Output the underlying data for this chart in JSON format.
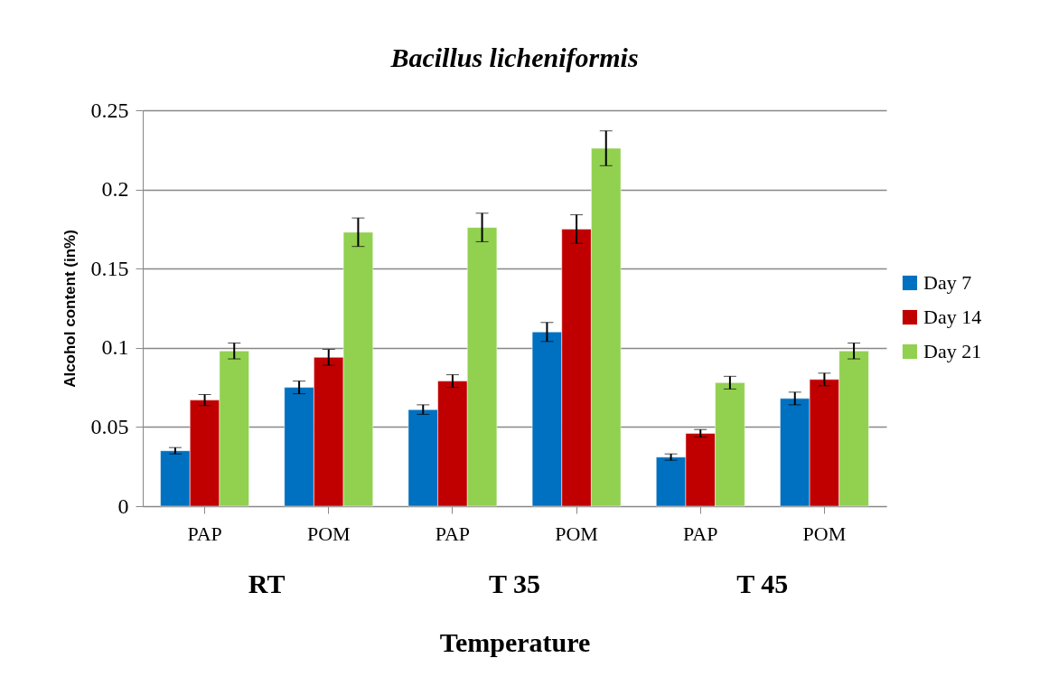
{
  "chart_data": {
    "type": "bar",
    "title": "Bacillus licheniformis",
    "xlabel": "Temperature",
    "ylabel": "Alcohol content (in%)",
    "categories": [
      "PAP",
      "POM",
      "PAP",
      "POM",
      "PAP",
      "POM"
    ],
    "annotations": [
      "RT",
      "T 35",
      "T 45"
    ],
    "series": [
      {
        "name": "Day 7",
        "color": "#0070c0",
        "values": [
          0.035,
          0.075,
          0.061,
          0.11,
          0.031,
          0.068
        ],
        "errors": [
          0.002,
          0.004,
          0.003,
          0.006,
          0.002,
          0.004
        ]
      },
      {
        "name": "Day 14",
        "color": "#c00000",
        "values": [
          0.067,
          0.094,
          0.079,
          0.175,
          0.046,
          0.08
        ],
        "errors": [
          0.0035,
          0.005,
          0.004,
          0.009,
          0.0024,
          0.004
        ]
      },
      {
        "name": "Day 21",
        "color": "#92d050",
        "values": [
          0.098,
          0.173,
          0.176,
          0.226,
          0.078,
          0.098
        ],
        "errors": [
          0.005,
          0.009,
          0.009,
          0.011,
          0.004,
          0.005
        ]
      }
    ],
    "ylim": [
      0,
      0.25
    ],
    "yticks": [
      0,
      0.05,
      0.1,
      0.15,
      0.2,
      0.25
    ],
    "grid": "y",
    "legend": "right"
  }
}
